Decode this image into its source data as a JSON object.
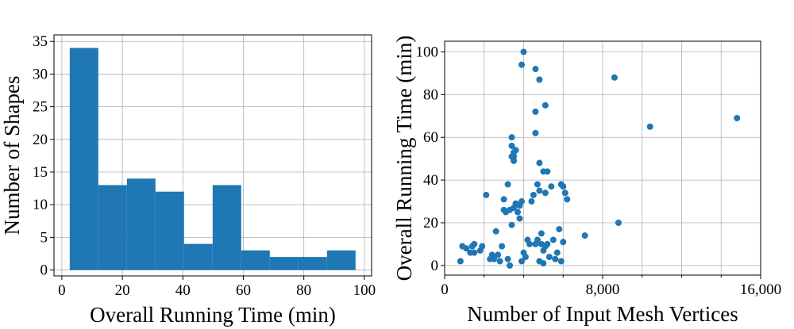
{
  "chart_data": [
    {
      "type": "histogram",
      "xlabel": "Overall Running Time (min)",
      "ylabel": "Number of Shapes",
      "bins": [
        2.6,
        12.05,
        21.5,
        30.95,
        40.4,
        49.85,
        59.3,
        68.75,
        78.2,
        87.65,
        97.1
      ],
      "counts": [
        34,
        13,
        14,
        12,
        4,
        13,
        3,
        2,
        2,
        3
      ],
      "color": "#1f77b4",
      "xlim": [
        -2.6,
        102.4
      ],
      "xticks": [
        0,
        20,
        40,
        60,
        80,
        100
      ],
      "ylim": [
        -0.9,
        36
      ],
      "yticks": [
        0,
        5,
        10,
        15,
        20,
        25,
        30,
        35
      ],
      "grid": true
    },
    {
      "type": "scatter",
      "xlabel": "Number of Input Mesh Vertices",
      "ylabel": "Overall Running Time (min)",
      "color": "#1f77b4",
      "x": [
        800,
        900,
        1100,
        1300,
        1400,
        1500,
        1500,
        1800,
        1900,
        2100,
        2300,
        2400,
        2500,
        2600,
        2700,
        2800,
        2900,
        3000,
        3000,
        3100,
        3200,
        3200,
        3300,
        3300,
        3400,
        3400,
        3400,
        3400,
        3500,
        3500,
        3500,
        3600,
        3500,
        3600,
        3700,
        3800,
        3800,
        3900,
        3900,
        3900,
        4000,
        4000,
        4100,
        4200,
        4300,
        4400,
        4500,
        4600,
        4600,
        4600,
        4600,
        4700,
        4700,
        4800,
        4800,
        4800,
        4800,
        4900,
        4900,
        5000,
        5000,
        5000,
        5100,
        5100,
        5100,
        5200,
        5200,
        5300,
        5400,
        5500,
        5600,
        5700,
        5800,
        5900,
        5900,
        6000,
        6000,
        6100,
        6200,
        7100,
        8600,
        8800,
        10400,
        14800
      ],
      "y": [
        2,
        9,
        8,
        6,
        9,
        10,
        6,
        7,
        9,
        33,
        3,
        5,
        3,
        16,
        5,
        2,
        9,
        26,
        31,
        25,
        3,
        38,
        26,
        0,
        19,
        60,
        51,
        56,
        53,
        51,
        49,
        54,
        27,
        29,
        25,
        22,
        28,
        30,
        2,
        94,
        100,
        6,
        4,
        12,
        10,
        30,
        33,
        92,
        72,
        62,
        10,
        38,
        12,
        48,
        87,
        35,
        2,
        10,
        15,
        44,
        7,
        1,
        75,
        34,
        9,
        44,
        10,
        4,
        37,
        12,
        3,
        6,
        17,
        2,
        38,
        11,
        37,
        34,
        31,
        14,
        88,
        20,
        65,
        69
      ],
      "xlim": [
        0,
        16000
      ],
      "xticks": [
        0,
        {
          "value": 8000,
          "label": "8,000"
        },
        {
          "value": 16000,
          "label": "16,000"
        }
      ],
      "xminorticks": [
        2000,
        4000,
        6000,
        10000,
        12000,
        14000
      ],
      "ylim": [
        -4.5,
        105
      ],
      "yticks": [
        0,
        20,
        40,
        60,
        80,
        100
      ],
      "grid": true
    }
  ]
}
